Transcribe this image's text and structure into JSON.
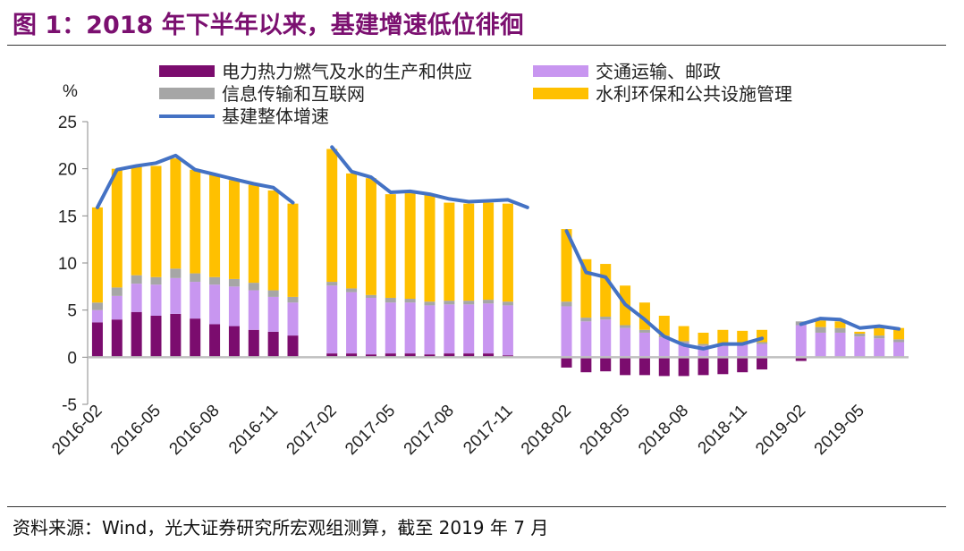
{
  "title": "图 1：2018 年下半年以来，基建增速低位徘徊",
  "source": "资料来源：Wind，光大证券研究所宏观组测算，截至 2019 年 7 月",
  "chart_data": {
    "type": "bar",
    "stacked": true,
    "unit": "%",
    "ylim": [
      -5,
      25
    ],
    "yticks": [
      -5,
      0,
      5,
      10,
      15,
      20,
      25
    ],
    "legend_position": "top",
    "grid": false,
    "categories": [
      "2016-02",
      "2016-03",
      "2016-04",
      "2016-05",
      "2016-06",
      "2016-07",
      "2016-08",
      "2016-09",
      "2016-10",
      "2016-11",
      "2016-12",
      "2017-01",
      "2017-02",
      "2017-03",
      "2017-04",
      "2017-05",
      "2017-06",
      "2017-07",
      "2017-08",
      "2017-09",
      "2017-10",
      "2017-11",
      "2017-12",
      "2018-01",
      "2018-02",
      "2018-03",
      "2018-04",
      "2018-05",
      "2018-06",
      "2018-07",
      "2018-08",
      "2018-09",
      "2018-10",
      "2018-11",
      "2018-12",
      "2019-01",
      "2019-02",
      "2019-03",
      "2019-04",
      "2019-05",
      "2019-06",
      "2019-07"
    ],
    "x_tick_labels": [
      "2016-02",
      "2016-05",
      "2016-08",
      "2016-11",
      "2017-02",
      "2017-05",
      "2017-08",
      "2017-11",
      "2018-02",
      "2018-05",
      "2018-08",
      "2018-11",
      "2019-02",
      "2019-05"
    ],
    "series": [
      {
        "name": "电力热力燃气及水的生产和供应",
        "color": "#7b0c6e",
        "values": [
          3.7,
          4.0,
          4.8,
          4.4,
          4.6,
          4.1,
          3.5,
          3.3,
          2.9,
          2.7,
          2.3,
          null,
          0.4,
          0.4,
          0.3,
          0.4,
          0.4,
          0.3,
          0.4,
          0.4,
          0.4,
          0.2,
          null,
          null,
          -1.1,
          -1.6,
          -1.5,
          -1.9,
          -1.9,
          -2.0,
          -2.0,
          -1.9,
          -1.8,
          -1.6,
          -1.3,
          null,
          -0.4,
          null,
          null,
          null,
          null,
          null
        ]
      },
      {
        "name": "交通运输、邮政",
        "color": "#c896f0",
        "values": [
          1.3,
          2.5,
          3.0,
          3.3,
          3.8,
          3.9,
          4.2,
          4.2,
          4.2,
          3.7,
          3.5,
          null,
          7.2,
          6.5,
          6.0,
          5.4,
          5.4,
          5.2,
          5.2,
          5.2,
          5.3,
          5.3,
          null,
          null,
          5.4,
          3.8,
          4.0,
          3.1,
          2.6,
          2.1,
          1.5,
          1.2,
          1.2,
          1.3,
          1.4,
          null,
          3.4,
          2.6,
          2.6,
          2.2,
          2.0,
          1.6
        ]
      },
      {
        "name": "信息传输和互联网",
        "color": "#a6a6a6",
        "values": [
          0.8,
          0.9,
          0.9,
          0.8,
          1.0,
          0.9,
          0.8,
          0.8,
          0.8,
          0.7,
          0.6,
          null,
          0.4,
          0.4,
          0.3,
          0.5,
          0.4,
          0.4,
          0.4,
          0.4,
          0.4,
          0.4,
          null,
          null,
          0.5,
          0.4,
          0.3,
          0.3,
          0.3,
          0.2,
          0.2,
          0.2,
          0.2,
          0.2,
          0.2,
          null,
          0.4,
          0.6,
          0.5,
          0.3,
          0.3,
          0.3
        ]
      },
      {
        "name": "水利环保和公共设施管理",
        "color": "#ffc000",
        "values": [
          10.1,
          12.6,
          11.5,
          11.8,
          11.7,
          11.0,
          10.9,
          10.5,
          10.4,
          10.6,
          9.9,
          null,
          14.1,
          12.2,
          12.4,
          11.0,
          11.2,
          11.4,
          10.4,
          10.3,
          10.3,
          10.4,
          null,
          null,
          7.7,
          6.2,
          5.6,
          4.2,
          2.9,
          2.1,
          1.6,
          1.2,
          1.5,
          1.3,
          1.3,
          null,
          0.0,
          0.7,
          0.7,
          0.2,
          0.8,
          1.2
        ]
      }
    ],
    "line": {
      "name": "基建整体增速",
      "color": "#4472c4",
      "values": [
        15.9,
        19.9,
        20.3,
        20.6,
        21.4,
        19.9,
        19.4,
        18.9,
        18.4,
        18.0,
        16.4,
        null,
        22.3,
        19.7,
        19.1,
        17.5,
        17.6,
        17.3,
        16.8,
        16.5,
        16.6,
        16.7,
        15.9,
        null,
        13.4,
        9.0,
        8.5,
        5.6,
        4.0,
        2.2,
        1.3,
        0.9,
        1.4,
        1.4,
        2.0,
        null,
        3.5,
        4.1,
        4.0,
        3.1,
        3.3,
        3.0
      ]
    }
  }
}
